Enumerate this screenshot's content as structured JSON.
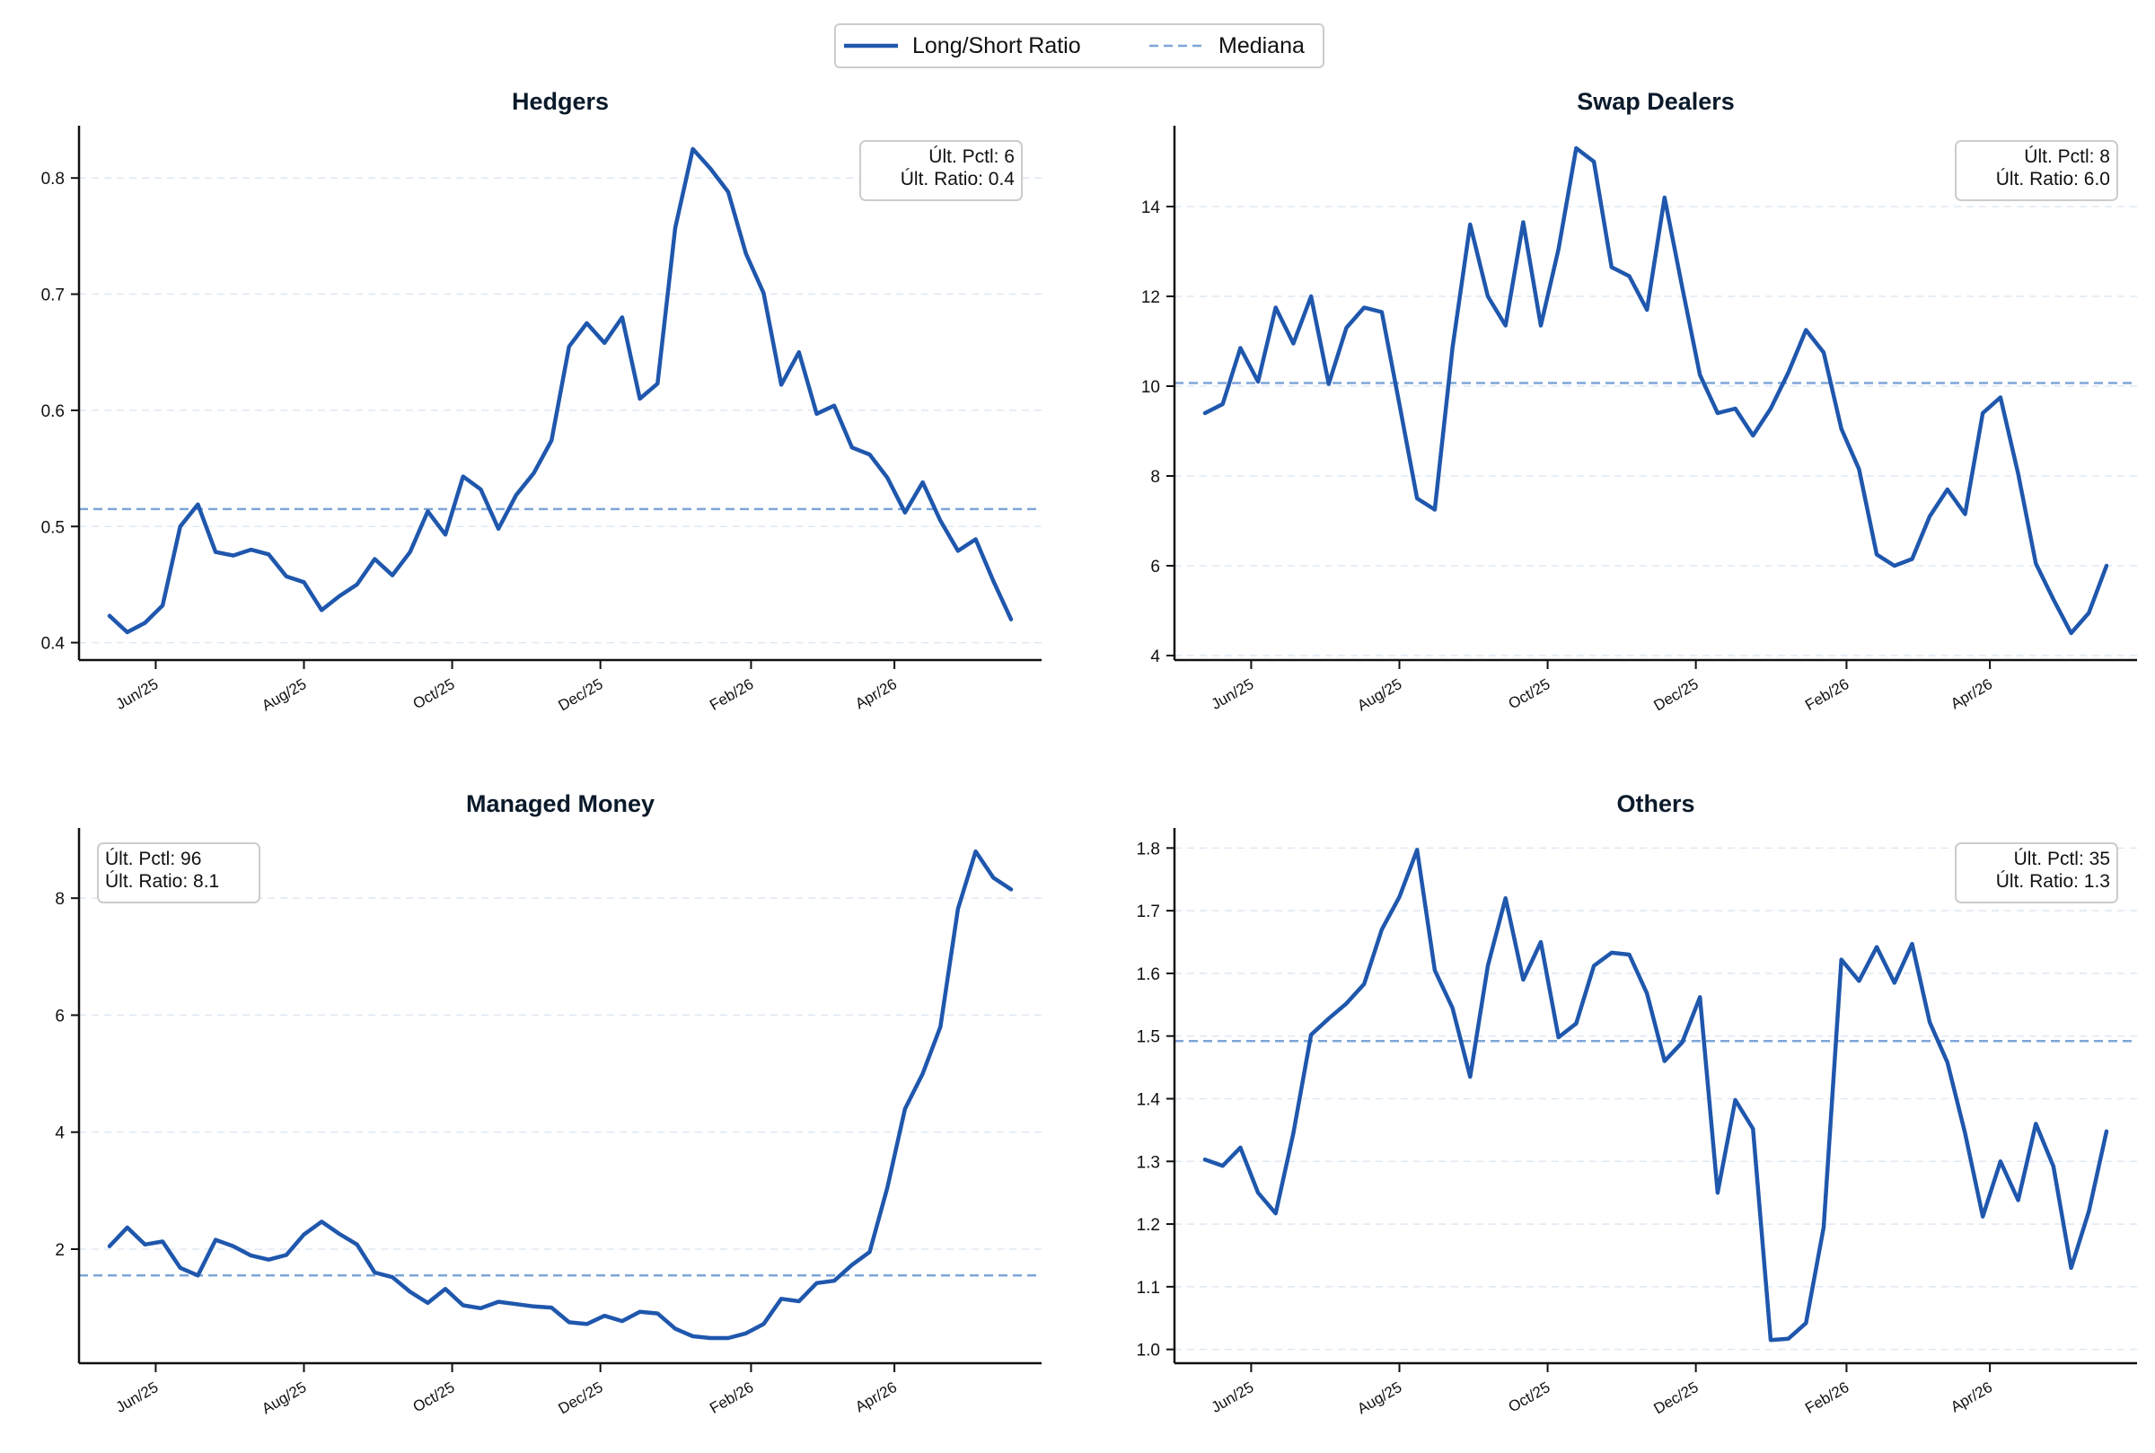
{
  "legend": {
    "placement": "top-center",
    "items": [
      {
        "label": "Long/Short Ratio",
        "style": "solid"
      },
      {
        "label": "Mediana",
        "style": "dashed"
      }
    ]
  },
  "colors": {
    "line": "#1f57ad",
    "median": "#7ea5d8",
    "grid": "#dfe8f3",
    "axis": "#111111",
    "text": "#0a1a2a"
  },
  "x_axis": {
    "start": "2025-05-13",
    "end": "2026-05-19",
    "tick_dates": [
      "2025-06-01",
      "2025-08-01",
      "2025-10-01",
      "2025-12-01",
      "2026-02-01",
      "2026-04-01"
    ],
    "tick_labels": [
      "Jun/25",
      "Aug/25",
      "Oct/25",
      "Dec/25",
      "Feb/26",
      "Apr/26"
    ]
  },
  "chart_data": [
    {
      "type": "line",
      "title": "Hedgers",
      "xlabel": "",
      "ylabel": "",
      "ylim": [
        0.385,
        0.845
      ],
      "yticks": [
        0.4,
        0.5,
        0.6,
        0.7,
        0.8
      ],
      "ytick_labels": [
        "0.4",
        "0.5",
        "0.6",
        "0.7",
        "0.8"
      ],
      "median": 0.515,
      "grid": "horizontal-dashed",
      "annotation": {
        "placement": "top-right",
        "lines": [
          "Últ. Pctl: 6",
          "Últ. Ratio: 0.4"
        ]
      },
      "series": [
        {
          "values": [
            0.423,
            0.409,
            0.417,
            0.432,
            0.5,
            0.519,
            0.478,
            0.475,
            0.48,
            0.476,
            0.457,
            0.452,
            0.428,
            0.44,
            0.45,
            0.472,
            0.458,
            0.478,
            0.513,
            0.493,
            0.543,
            0.532,
            0.498,
            0.527,
            0.546,
            0.574,
            0.655,
            0.675,
            0.658,
            0.68,
            0.61,
            0.623,
            0.757,
            0.825,
            0.808,
            0.788,
            0.735,
            0.701,
            0.622,
            0.65,
            0.597,
            0.604,
            0.568,
            0.562,
            0.542,
            0.512,
            0.538,
            0.505,
            0.479,
            0.489,
            0.453,
            0.42
          ]
        }
      ]
    },
    {
      "type": "line",
      "title": "Swap Dealers",
      "xlabel": "",
      "ylabel": "",
      "ylim": [
        3.9,
        15.8
      ],
      "yticks": [
        4,
        6,
        8,
        10,
        12,
        14
      ],
      "ytick_labels": [
        "4",
        "6",
        "8",
        "10",
        "12",
        "14"
      ],
      "median": 10.07,
      "grid": "horizontal-dashed",
      "annotation": {
        "placement": "top-right",
        "lines": [
          "Últ. Pctl: 8",
          "Últ. Ratio: 6.0"
        ]
      },
      "series": [
        {
          "values": [
            9.4,
            9.6,
            10.85,
            10.1,
            11.75,
            10.95,
            12.0,
            10.05,
            11.3,
            11.75,
            11.65,
            9.6,
            7.5,
            7.25,
            10.85,
            13.6,
            12.0,
            11.35,
            13.65,
            11.35,
            13.05,
            15.3,
            15.0,
            12.65,
            12.45,
            11.7,
            14.2,
            12.2,
            10.25,
            9.4,
            9.5,
            8.9,
            9.5,
            10.3,
            11.25,
            10.75,
            9.05,
            8.15,
            6.25,
            6.0,
            6.15,
            7.1,
            7.7,
            7.15,
            9.4,
            9.75,
            8.05,
            6.05,
            5.25,
            4.5,
            4.95,
            6.0
          ]
        }
      ]
    },
    {
      "type": "line",
      "title": "Managed Money",
      "xlabel": "",
      "ylabel": "",
      "ylim": [
        0.05,
        9.2
      ],
      "yticks": [
        2,
        4,
        6,
        8
      ],
      "ytick_labels": [
        "2",
        "4",
        "6",
        "8"
      ],
      "median": 1.55,
      "grid": "horizontal-dashed",
      "annotation": {
        "placement": "top-left",
        "lines": [
          "Últ. Pctl: 96",
          "Últ. Ratio: 8.1"
        ]
      },
      "series": [
        {
          "values": [
            2.05,
            2.37,
            2.08,
            2.13,
            1.68,
            1.55,
            2.16,
            2.05,
            1.89,
            1.82,
            1.9,
            2.25,
            2.47,
            2.26,
            2.08,
            1.6,
            1.52,
            1.27,
            1.08,
            1.32,
            1.04,
            0.99,
            1.1,
            1.06,
            1.02,
            1.0,
            0.75,
            0.72,
            0.86,
            0.77,
            0.93,
            0.9,
            0.64,
            0.51,
            0.48,
            0.48,
            0.56,
            0.72,
            1.15,
            1.11,
            1.42,
            1.46,
            1.73,
            1.95,
            3.05,
            4.4,
            5.0,
            5.8,
            7.82,
            8.8,
            8.35,
            8.15
          ]
        }
      ]
    },
    {
      "type": "line",
      "title": "Others",
      "xlabel": "",
      "ylabel": "",
      "ylim": [
        0.978,
        1.832
      ],
      "yticks": [
        1.0,
        1.1,
        1.2,
        1.3,
        1.4,
        1.5,
        1.6,
        1.7,
        1.8
      ],
      "ytick_labels": [
        "1.0",
        "1.1",
        "1.2",
        "1.3",
        "1.4",
        "1.5",
        "1.6",
        "1.7",
        "1.8"
      ],
      "median": 1.492,
      "grid": "horizontal-dashed",
      "annotation": {
        "placement": "top-right",
        "lines": [
          "Últ. Pctl: 35",
          "Últ. Ratio: 1.3"
        ]
      },
      "series": [
        {
          "values": [
            1.303,
            1.293,
            1.322,
            1.25,
            1.217,
            1.345,
            1.502,
            1.528,
            1.552,
            1.583,
            1.67,
            1.722,
            1.797,
            1.605,
            1.545,
            1.435,
            1.612,
            1.72,
            1.59,
            1.65,
            1.498,
            1.52,
            1.612,
            1.633,
            1.63,
            1.568,
            1.46,
            1.49,
            1.562,
            1.25,
            1.398,
            1.352,
            1.015,
            1.017,
            1.042,
            1.195,
            1.622,
            1.588,
            1.642,
            1.585,
            1.647,
            1.522,
            1.458,
            1.345,
            1.212,
            1.3,
            1.238,
            1.36,
            1.292,
            1.13,
            1.22,
            1.348
          ]
        }
      ]
    }
  ]
}
